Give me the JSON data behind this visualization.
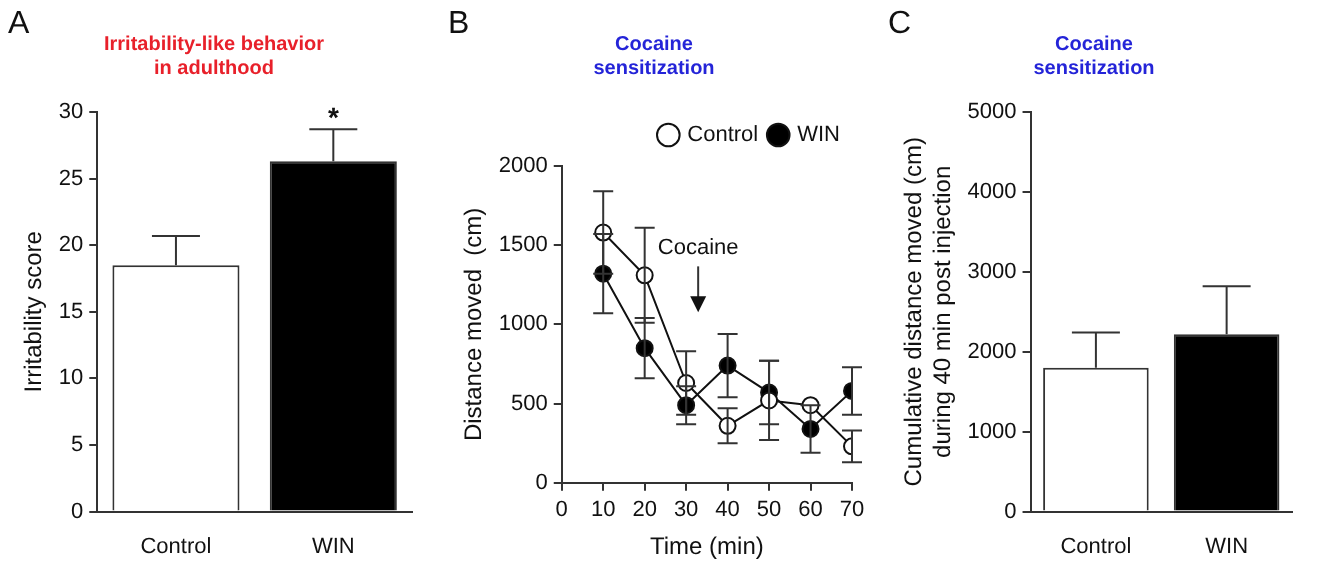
{
  "chart_data": [
    {
      "type": "bar",
      "title": "Irritability-like behavior\nin adulthood",
      "ylabel": "Irritability score",
      "categories": [
        "Control",
        "WIN"
      ],
      "values": [
        18.5,
        26.3
      ],
      "errors": [
        2.2,
        2.4
      ],
      "colors": [
        "#ffffff",
        "#000000"
      ],
      "ylim": [
        0,
        30
      ],
      "yticks": [
        0,
        5,
        10,
        15,
        20,
        25,
        30
      ],
      "grid": false,
      "legend": false,
      "annotations": [
        "A",
        {
          "text": "*",
          "x": "WIN",
          "y": 28.7
        }
      ]
    },
    {
      "type": "line",
      "title": "Cocaine\nsensitization",
      "xlabel": "Time (min)",
      "ylabel": "Distance moved  (cm)",
      "x": [
        10,
        20,
        30,
        40,
        50,
        60,
        70
      ],
      "series": [
        {
          "name": "Control",
          "color": "#ffffff",
          "values": [
            1580,
            1310,
            630,
            360,
            520,
            490,
            230
          ],
          "errors": [
            260,
            300,
            200,
            110,
            250,
            null,
            100
          ]
        },
        {
          "name": "WIN",
          "color": "#000000",
          "values": [
            1320,
            850,
            490,
            740,
            570,
            340,
            580
          ],
          "errors": [
            250,
            190,
            120,
            200,
            200,
            150,
            150
          ]
        }
      ],
      "xlim": [
        0,
        70
      ],
      "xticks": [
        0,
        10,
        20,
        30,
        40,
        50,
        60,
        70
      ],
      "ylim": [
        0,
        2000
      ],
      "yticks": [
        0,
        500,
        1000,
        1500,
        2000
      ],
      "grid": false,
      "legend": "top right",
      "marker": "circle",
      "line_style": "solid",
      "annotations": [
        "B",
        "Cocaine"
      ]
    },
    {
      "type": "bar",
      "title": "Cocaine\nsensitization",
      "ylabel": "Cumulative distance moved (cm)\nduring 40 min post injection",
      "categories": [
        "Control",
        "WIN"
      ],
      "values": [
        1800,
        2220
      ],
      "errors": [
        440,
        600
      ],
      "colors": [
        "#ffffff",
        "#000000"
      ],
      "ylim": [
        0,
        5000
      ],
      "yticks": [
        0,
        1000,
        2000,
        3000,
        4000,
        5000
      ],
      "grid": false,
      "legend": false,
      "annotations": [
        "C"
      ]
    }
  ]
}
